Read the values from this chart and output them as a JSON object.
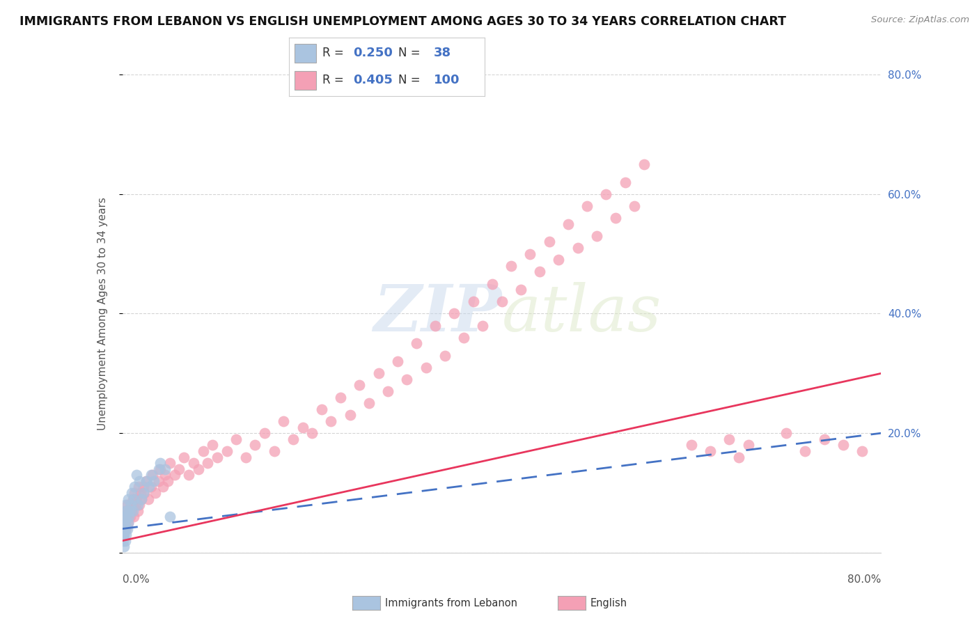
{
  "title": "IMMIGRANTS FROM LEBANON VS ENGLISH UNEMPLOYMENT AMONG AGES 30 TO 34 YEARS CORRELATION CHART",
  "source": "Source: ZipAtlas.com",
  "ylabel": "Unemployment Among Ages 30 to 34 years",
  "xlim": [
    0,
    0.8
  ],
  "ylim": [
    0,
    0.8
  ],
  "right_yticks": [
    0.0,
    0.2,
    0.4,
    0.6,
    0.8
  ],
  "right_ytick_labels": [
    "",
    "20.0%",
    "40.0%",
    "60.0%",
    "80.0%"
  ],
  "series": [
    {
      "name": "Immigrants from Lebanon",
      "R": 0.25,
      "N": 38,
      "color": "#aac4e0",
      "line_color": "#4472c4",
      "line_style": "--",
      "x": [
        0.001,
        0.001,
        0.001,
        0.002,
        0.002,
        0.002,
        0.002,
        0.003,
        0.003,
        0.003,
        0.003,
        0.003,
        0.004,
        0.004,
        0.005,
        0.005,
        0.006,
        0.006,
        0.007,
        0.008,
        0.009,
        0.01,
        0.011,
        0.012,
        0.013,
        0.015,
        0.016,
        0.018,
        0.02,
        0.022,
        0.025,
        0.028,
        0.03,
        0.033,
        0.038,
        0.04,
        0.045,
        0.05
      ],
      "y": [
        0.02,
        0.03,
        0.05,
        0.01,
        0.03,
        0.04,
        0.06,
        0.02,
        0.04,
        0.05,
        0.07,
        0.08,
        0.03,
        0.06,
        0.04,
        0.07,
        0.05,
        0.09,
        0.06,
        0.07,
        0.08,
        0.1,
        0.07,
        0.09,
        0.11,
        0.13,
        0.08,
        0.12,
        0.09,
        0.1,
        0.12,
        0.11,
        0.13,
        0.12,
        0.14,
        0.15,
        0.14,
        0.06
      ],
      "trend_x0": 0.0,
      "trend_x1": 0.8,
      "trend_y0": 0.04,
      "trend_y1": 0.2
    },
    {
      "name": "English",
      "R": 0.405,
      "N": 100,
      "color": "#f4a0b5",
      "line_color": "#e8365d",
      "line_style": "-",
      "x": [
        0.001,
        0.002,
        0.003,
        0.003,
        0.004,
        0.005,
        0.005,
        0.006,
        0.007,
        0.008,
        0.009,
        0.01,
        0.011,
        0.012,
        0.013,
        0.014,
        0.015,
        0.016,
        0.017,
        0.018,
        0.019,
        0.02,
        0.022,
        0.023,
        0.025,
        0.027,
        0.03,
        0.032,
        0.035,
        0.038,
        0.04,
        0.043,
        0.045,
        0.048,
        0.05,
        0.055,
        0.06,
        0.065,
        0.07,
        0.075,
        0.08,
        0.085,
        0.09,
        0.095,
        0.1,
        0.11,
        0.12,
        0.13,
        0.14,
        0.15,
        0.16,
        0.17,
        0.18,
        0.19,
        0.2,
        0.21,
        0.22,
        0.23,
        0.24,
        0.25,
        0.26,
        0.27,
        0.28,
        0.29,
        0.3,
        0.31,
        0.32,
        0.33,
        0.34,
        0.35,
        0.36,
        0.37,
        0.38,
        0.39,
        0.4,
        0.41,
        0.42,
        0.43,
        0.44,
        0.45,
        0.46,
        0.47,
        0.48,
        0.49,
        0.5,
        0.51,
        0.52,
        0.53,
        0.54,
        0.55,
        0.6,
        0.62,
        0.64,
        0.65,
        0.66,
        0.7,
        0.72,
        0.74,
        0.76,
        0.78
      ],
      "y": [
        0.03,
        0.04,
        0.05,
        0.07,
        0.04,
        0.06,
        0.08,
        0.05,
        0.07,
        0.06,
        0.08,
        0.07,
        0.09,
        0.06,
        0.1,
        0.08,
        0.09,
        0.07,
        0.11,
        0.08,
        0.1,
        0.09,
        0.11,
        0.1,
        0.12,
        0.09,
        0.11,
        0.13,
        0.1,
        0.12,
        0.14,
        0.11,
        0.13,
        0.12,
        0.15,
        0.13,
        0.14,
        0.16,
        0.13,
        0.15,
        0.14,
        0.17,
        0.15,
        0.18,
        0.16,
        0.17,
        0.19,
        0.16,
        0.18,
        0.2,
        0.17,
        0.22,
        0.19,
        0.21,
        0.2,
        0.24,
        0.22,
        0.26,
        0.23,
        0.28,
        0.25,
        0.3,
        0.27,
        0.32,
        0.29,
        0.35,
        0.31,
        0.38,
        0.33,
        0.4,
        0.36,
        0.42,
        0.38,
        0.45,
        0.42,
        0.48,
        0.44,
        0.5,
        0.47,
        0.52,
        0.49,
        0.55,
        0.51,
        0.58,
        0.53,
        0.6,
        0.56,
        0.62,
        0.58,
        0.65,
        0.18,
        0.17,
        0.19,
        0.16,
        0.18,
        0.2,
        0.17,
        0.19,
        0.18,
        0.17
      ],
      "trend_x0": 0.0,
      "trend_x1": 0.8,
      "trend_y0": 0.02,
      "trend_y1": 0.3
    }
  ],
  "background_color": "#ffffff",
  "grid_color": "#d0d0d0",
  "watermark_zip": "ZIP",
  "watermark_atlas": "atlas",
  "title_fontsize": 12.5,
  "axis_label_fontsize": 11,
  "tick_label_color": "#4472c4"
}
